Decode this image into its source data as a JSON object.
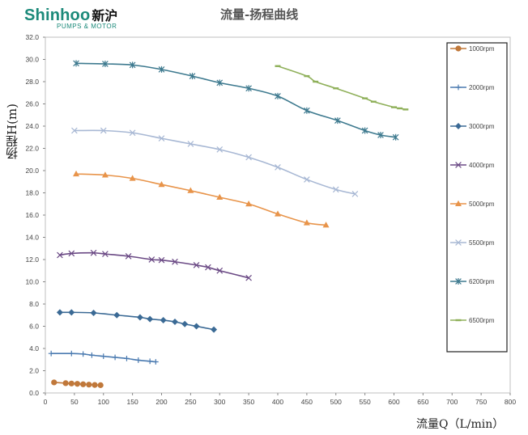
{
  "logo": {
    "brand": "Shinhoo",
    "brand_cn": "新沪",
    "tagline": "PUMPS & MOTOR"
  },
  "chart_data": {
    "type": "line",
    "title": "流量-扬程曲线",
    "xlabel": "流量Q（L/min）",
    "ylabel": "扬程H(m)",
    "xlim": [
      0,
      800
    ],
    "ylim": [
      0,
      32
    ],
    "x_ticks": [
      "0",
      "50",
      "100",
      "150",
      "200",
      "250",
      "300",
      "350",
      "400",
      "450",
      "500",
      "550",
      "600",
      "650",
      "700",
      "750",
      "800"
    ],
    "y_ticks": [
      "0.0",
      "2.0",
      "4.0",
      "6.0",
      "8.0",
      "10.0",
      "12.0",
      "14.0",
      "16.0",
      "18.0",
      "20.0",
      "22.0",
      "24.0",
      "26.0",
      "28.0",
      "30.0",
      "32.0"
    ],
    "grid": false,
    "legend_position": "right",
    "series": [
      {
        "name": "1000rpm",
        "color": "#c0783a",
        "marker": "circle",
        "points": [
          [
            15,
            0.95
          ],
          [
            35,
            0.88
          ],
          [
            45,
            0.85
          ],
          [
            55,
            0.82
          ],
          [
            65,
            0.78
          ],
          [
            75,
            0.75
          ],
          [
            85,
            0.72
          ],
          [
            95,
            0.7
          ]
        ]
      },
      {
        "name": "2000rpm",
        "color": "#4a7ab0",
        "marker": "plus",
        "points": [
          [
            10,
            3.55
          ],
          [
            45,
            3.55
          ],
          [
            65,
            3.5
          ],
          [
            80,
            3.4
          ],
          [
            100,
            3.3
          ],
          [
            120,
            3.2
          ],
          [
            140,
            3.1
          ],
          [
            160,
            2.95
          ],
          [
            180,
            2.85
          ],
          [
            190,
            2.8
          ]
        ]
      },
      {
        "name": "3000rpm",
        "color": "#3b6a95",
        "marker": "diamond",
        "points": [
          [
            25,
            7.25
          ],
          [
            45,
            7.25
          ],
          [
            83,
            7.2
          ],
          [
            123,
            7.0
          ],
          [
            163,
            6.8
          ],
          [
            180,
            6.65
          ],
          [
            203,
            6.55
          ],
          [
            223,
            6.4
          ],
          [
            240,
            6.2
          ],
          [
            260,
            6.0
          ],
          [
            290,
            5.7
          ]
        ]
      },
      {
        "name": "4000rpm",
        "color": "#6b4a85",
        "marker": "x",
        "points": [
          [
            25,
            12.4
          ],
          [
            45,
            12.55
          ],
          [
            83,
            12.6
          ],
          [
            103,
            12.5
          ],
          [
            143,
            12.3
          ],
          [
            183,
            12.0
          ],
          [
            200,
            11.95
          ],
          [
            223,
            11.8
          ],
          [
            260,
            11.5
          ],
          [
            280,
            11.3
          ],
          [
            300,
            11.0
          ],
          [
            350,
            10.35
          ]
        ]
      },
      {
        "name": "5000rpm",
        "color": "#e8944a",
        "marker": "triangle",
        "points": [
          [
            53,
            19.7
          ],
          [
            103,
            19.6
          ],
          [
            150,
            19.3
          ],
          [
            200,
            18.75
          ],
          [
            250,
            18.2
          ],
          [
            300,
            17.6
          ],
          [
            350,
            17.0
          ],
          [
            400,
            16.1
          ],
          [
            450,
            15.3
          ],
          [
            483,
            15.1
          ]
        ]
      },
      {
        "name": "5500rpm",
        "color": "#a8b8d4",
        "marker": "x",
        "points": [
          [
            50,
            23.6
          ],
          [
            100,
            23.6
          ],
          [
            150,
            23.4
          ],
          [
            200,
            22.9
          ],
          [
            250,
            22.4
          ],
          [
            300,
            21.9
          ],
          [
            350,
            21.2
          ],
          [
            400,
            20.3
          ],
          [
            450,
            19.2
          ],
          [
            500,
            18.3
          ],
          [
            533,
            17.9
          ]
        ]
      },
      {
        "name": "6200rpm",
        "color": "#3e7a8f",
        "marker": "asterisk",
        "points": [
          [
            53,
            29.65
          ],
          [
            103,
            29.6
          ],
          [
            150,
            29.5
          ],
          [
            200,
            29.1
          ],
          [
            253,
            28.5
          ],
          [
            300,
            27.9
          ],
          [
            350,
            27.4
          ],
          [
            400,
            26.7
          ],
          [
            450,
            25.4
          ],
          [
            503,
            24.5
          ],
          [
            550,
            23.6
          ],
          [
            577,
            23.2
          ],
          [
            603,
            23.0
          ]
        ]
      },
      {
        "name": "6500rpm",
        "color": "#8fb05a",
        "marker": "dash",
        "points": [
          [
            400,
            29.4
          ],
          [
            450,
            28.5
          ],
          [
            465,
            28.0
          ],
          [
            500,
            27.4
          ],
          [
            550,
            26.5
          ],
          [
            565,
            26.2
          ],
          [
            600,
            25.7
          ],
          [
            610,
            25.6
          ],
          [
            620,
            25.5
          ]
        ]
      }
    ]
  }
}
